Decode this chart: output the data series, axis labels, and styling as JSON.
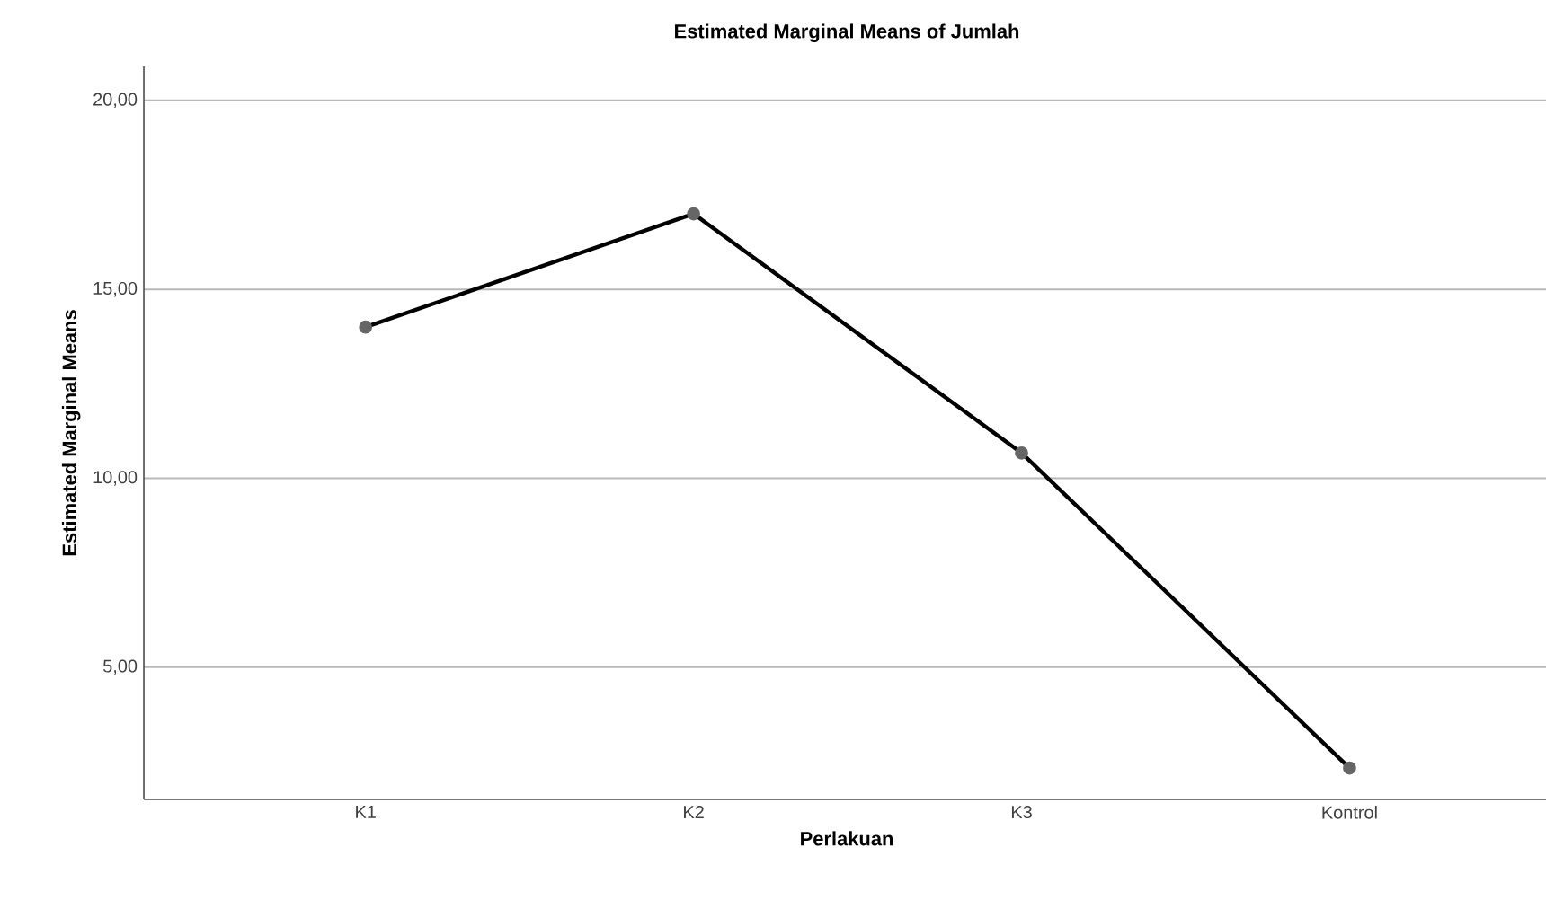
{
  "chart_data": {
    "type": "line",
    "title": "Estimated Marginal Means of Jumlah",
    "xlabel": "Perlakuan",
    "ylabel": "Estimated Marginal Means",
    "categories": [
      "K1",
      "K2",
      "K3",
      "Kontrol"
    ],
    "series": [
      {
        "color": "#000000",
        "values": [
          14.0,
          17.0,
          10.67,
          2.33
        ]
      }
    ],
    "ylim": [
      1.5,
      20.9
    ],
    "yticks": [
      {
        "value": 5,
        "label": "5,00"
      },
      {
        "value": 10,
        "label": "10,00"
      },
      {
        "value": 15,
        "label": "15,00"
      },
      {
        "value": 20,
        "label": "20,00"
      }
    ],
    "grid": "y",
    "marker": "circle",
    "line_style": "solid"
  }
}
